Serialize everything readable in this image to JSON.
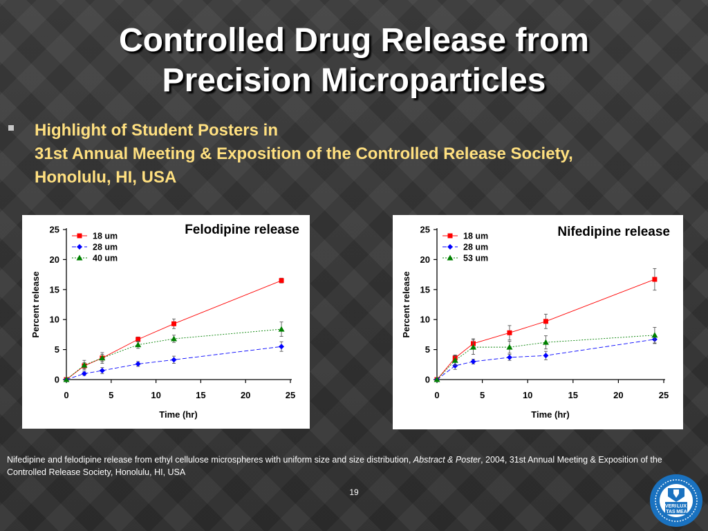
{
  "slide": {
    "title_line1": "Controlled Drug Release from",
    "title_line2": "Precision Microparticles",
    "bullet_line1": "Highlight of Student Posters in",
    "bullet_line2": "31st Annual Meeting & Exposition of the Controlled Release Society,",
    "bullet_line3": "Honolulu, HI, USA",
    "caption_part1": "Nifedipine and felodipine release from ethyl cellulose microspheres with uniform size and size distribution, ",
    "caption_italic": "Abstract & Poster",
    "caption_part2": ", 2004, 31st Annual Meeting & Exposition of the Controlled Release Society, Honolulu, HI, USA",
    "page_number": "19",
    "logo_text": [
      "VERI",
      "LUX",
      "TAS",
      "MEA"
    ]
  },
  "chart_data": [
    {
      "type": "line",
      "title": "Felodipine release",
      "xlabel": "Time (hr)",
      "ylabel": "Percent release",
      "xlim": [
        0,
        25
      ],
      "ylim": [
        0,
        25
      ],
      "xticks": [
        0,
        5,
        10,
        15,
        20,
        25
      ],
      "yticks": [
        0,
        5,
        10,
        15,
        20,
        25
      ],
      "legend_position": "top-left",
      "grid": false,
      "series": [
        {
          "name": "18 um",
          "color": "#ff0000",
          "marker": "square",
          "dash": "solid",
          "x": [
            0,
            2,
            4,
            8,
            12,
            24
          ],
          "y": [
            0,
            2.3,
            3.6,
            6.7,
            9.3,
            16.5
          ],
          "err": [
            0,
            0.5,
            0.6,
            0.4,
            0.8,
            0.4
          ]
        },
        {
          "name": "28 um",
          "color": "#0000ff",
          "marker": "diamond",
          "dash": "dashed",
          "x": [
            0,
            2,
            4,
            8,
            12,
            24
          ],
          "y": [
            0,
            1.0,
            1.5,
            2.6,
            3.3,
            5.5
          ],
          "err": [
            0,
            0.3,
            0.5,
            0.4,
            0.6,
            0.8
          ]
        },
        {
          "name": "40 um",
          "color": "#008000",
          "marker": "triangle",
          "dash": "dotted",
          "x": [
            0,
            2,
            4,
            8,
            12,
            24
          ],
          "y": [
            0,
            2.4,
            3.6,
            5.8,
            6.8,
            8.4
          ],
          "err": [
            0,
            0.8,
            0.9,
            0.6,
            0.6,
            1.2
          ]
        }
      ]
    },
    {
      "type": "line",
      "title": "Nifedipine release",
      "xlabel": "Time (hr)",
      "ylabel": "Percent release",
      "xlim": [
        0,
        25
      ],
      "ylim": [
        0,
        25
      ],
      "xticks": [
        0,
        5,
        10,
        15,
        20,
        25
      ],
      "yticks": [
        0,
        5,
        10,
        15,
        20,
        25
      ],
      "legend_position": "top-left",
      "grid": false,
      "series": [
        {
          "name": "18 um",
          "color": "#ff0000",
          "marker": "square",
          "dash": "solid",
          "x": [
            0,
            2,
            4,
            8,
            12,
            24
          ],
          "y": [
            0,
            3.6,
            6.0,
            7.8,
            9.7,
            16.7
          ],
          "err": [
            0,
            0.5,
            0.8,
            1.2,
            1.2,
            1.8
          ]
        },
        {
          "name": "28 um",
          "color": "#0000ff",
          "marker": "diamond",
          "dash": "dashed",
          "x": [
            0,
            2,
            4,
            8,
            12,
            24
          ],
          "y": [
            0,
            2.3,
            3.0,
            3.7,
            4.0,
            6.7
          ],
          "err": [
            0,
            0.6,
            0.4,
            0.5,
            0.7,
            0.7
          ]
        },
        {
          "name": "53 um",
          "color": "#008000",
          "marker": "triangle",
          "dash": "dotted",
          "x": [
            0,
            2,
            4,
            8,
            12,
            24
          ],
          "y": [
            0,
            3.2,
            5.4,
            5.4,
            6.2,
            7.4
          ],
          "err": [
            0,
            0.8,
            1.2,
            1.0,
            1.1,
            1.3
          ]
        }
      ]
    }
  ]
}
